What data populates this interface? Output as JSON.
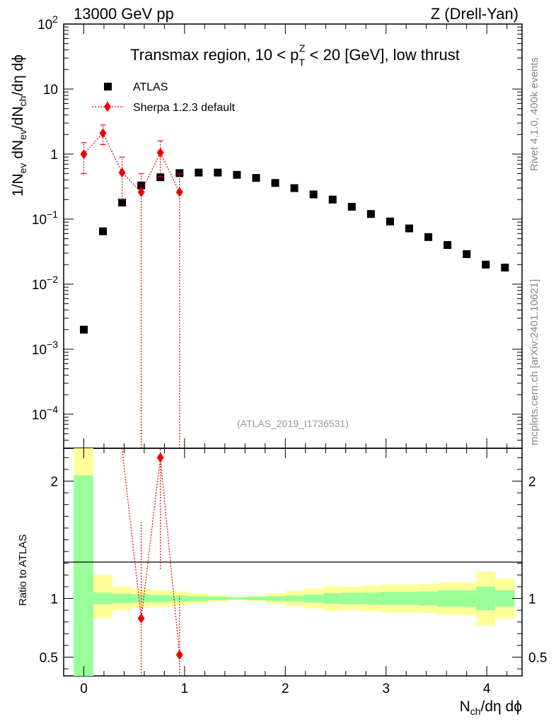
{
  "header": {
    "left": "13000 GeV pp",
    "right": "Z (Drell-Yan)"
  },
  "plot_title": {
    "prefix": "Transmax region, 10 < p",
    "sub": "T",
    "sup": "Z",
    "suffix": " < 20 [GeV], low thrust"
  },
  "side_labels": {
    "rivet": "Rivet 4.1.0,  400k events",
    "mcplots": "mcplots.cern.ch [arXiv:2401.10621]"
  },
  "analysis_id": "(ATLAS_2019_I1736531)",
  "y_axis": {
    "main_parts": [
      "1/N",
      "ev",
      " dN",
      "ev",
      "/dN",
      "ch",
      "/dη dϕ"
    ],
    "ratio_label": "Ratio to ATLAS"
  },
  "x_axis": {
    "label_main": "N",
    "label_sub": "ch",
    "label_rest": "/dη dϕ"
  },
  "legend": [
    {
      "name": "ATLAS",
      "marker": "square",
      "color": "#000000"
    },
    {
      "name": "Sherpa 1.2.3 default",
      "marker": "diamond",
      "color": "#ee0000"
    }
  ],
  "colors": {
    "data": "#000000",
    "mc": "#ee0000",
    "band_inner": "#99ff99",
    "band_outer": "#ffff99"
  },
  "chart_data": {
    "type": "scatter",
    "xlim": [
      -0.2,
      4.35
    ],
    "ylim_main": [
      3e-05,
      100
    ],
    "ylim_ratio": [
      0.34,
      2.28
    ],
    "x_ticks": [
      {
        "v": 0,
        "label": "0"
      },
      {
        "v": 1,
        "label": "1"
      },
      {
        "v": 2,
        "label": "2"
      },
      {
        "v": 3,
        "label": "3"
      },
      {
        "v": 4,
        "label": "4"
      }
    ],
    "y_ticks_main": [
      {
        "v": 0.0001,
        "base": "10",
        "exp": "−4"
      },
      {
        "v": 0.001,
        "base": "10",
        "exp": "−3"
      },
      {
        "v": 0.01,
        "base": "10",
        "exp": "−2"
      },
      {
        "v": 0.1,
        "base": "10",
        "exp": "−1"
      },
      {
        "v": 1,
        "base": "1",
        "exp": ""
      },
      {
        "v": 10,
        "base": "10",
        "exp": ""
      },
      {
        "v": 100,
        "base": "10",
        "exp": "2"
      }
    ],
    "y_ticks_ratio": [
      {
        "v": 0.5,
        "label": "0.5"
      },
      {
        "v": 1,
        "label": "1"
      },
      {
        "v": 2,
        "label": "2"
      }
    ],
    "series": [
      {
        "name": "ATLAS",
        "x": [
          0.0,
          0.19,
          0.38,
          0.57,
          0.76,
          0.95,
          1.14,
          1.33,
          1.52,
          1.71,
          1.9,
          2.09,
          2.28,
          2.47,
          2.66,
          2.85,
          3.04,
          3.23,
          3.42,
          3.61,
          3.8,
          3.99,
          4.18
        ],
        "y": [
          0.002,
          0.065,
          0.18,
          0.33,
          0.44,
          0.51,
          0.52,
          0.52,
          0.48,
          0.43,
          0.36,
          0.3,
          0.24,
          0.2,
          0.155,
          0.12,
          0.092,
          0.072,
          0.053,
          0.04,
          0.029,
          0.02,
          0.018
        ]
      },
      {
        "name": "Sherpa 1.2.3 default",
        "x": [
          0.0,
          0.19,
          0.38,
          0.57,
          0.76,
          0.95
        ],
        "y": [
          1.0,
          2.1,
          0.52,
          0.26,
          1.05,
          0.26
        ],
        "y_err_low": [
          0.5,
          1.4,
          0.2,
          3e-05,
          0.45,
          3e-05
        ],
        "y_err_high": [
          1.5,
          2.8,
          0.9,
          0.5,
          1.6,
          0.5
        ]
      }
    ],
    "ratio": {
      "x": [
        0.57,
        0.76,
        0.95
      ],
      "y": [
        0.83,
        2.2,
        0.52
      ],
      "y_err_low": [
        0.34,
        1.25,
        0.34
      ],
      "y_err_high": [
        1.65,
        2.28,
        1.02
      ],
      "offscale_from_x": 0.38
    },
    "bands": {
      "x_edges": [
        -0.1,
        0.095,
        0.285,
        0.475,
        0.665,
        0.855,
        1.045,
        1.235,
        1.425,
        1.615,
        1.805,
        1.995,
        2.185,
        2.375,
        2.565,
        2.755,
        2.945,
        3.135,
        3.325,
        3.515,
        3.705,
        3.895,
        4.085,
        4.275
      ],
      "inner_low": [
        0.34,
        0.95,
        0.96,
        0.965,
        0.97,
        0.975,
        0.98,
        0.985,
        0.99,
        0.985,
        0.98,
        0.975,
        0.965,
        0.955,
        0.95,
        0.95,
        0.945,
        0.945,
        0.94,
        0.93,
        0.93,
        0.9,
        0.93
      ],
      "inner_high": [
        2.05,
        1.05,
        1.04,
        1.035,
        1.03,
        1.025,
        1.02,
        1.015,
        1.01,
        1.015,
        1.02,
        1.025,
        1.035,
        1.045,
        1.05,
        1.05,
        1.055,
        1.055,
        1.06,
        1.07,
        1.07,
        1.1,
        1.07
      ],
      "outer_low": [
        0.34,
        0.83,
        0.9,
        0.92,
        0.93,
        0.94,
        0.955,
        0.97,
        0.985,
        0.975,
        0.955,
        0.935,
        0.915,
        0.895,
        0.9,
        0.89,
        0.88,
        0.88,
        0.875,
        0.86,
        0.86,
        0.77,
        0.83
      ],
      "outer_high": [
        2.28,
        1.2,
        1.1,
        1.08,
        1.07,
        1.06,
        1.045,
        1.03,
        1.015,
        1.025,
        1.045,
        1.065,
        1.085,
        1.105,
        1.1,
        1.11,
        1.12,
        1.12,
        1.125,
        1.14,
        1.14,
        1.23,
        1.17
      ]
    }
  }
}
